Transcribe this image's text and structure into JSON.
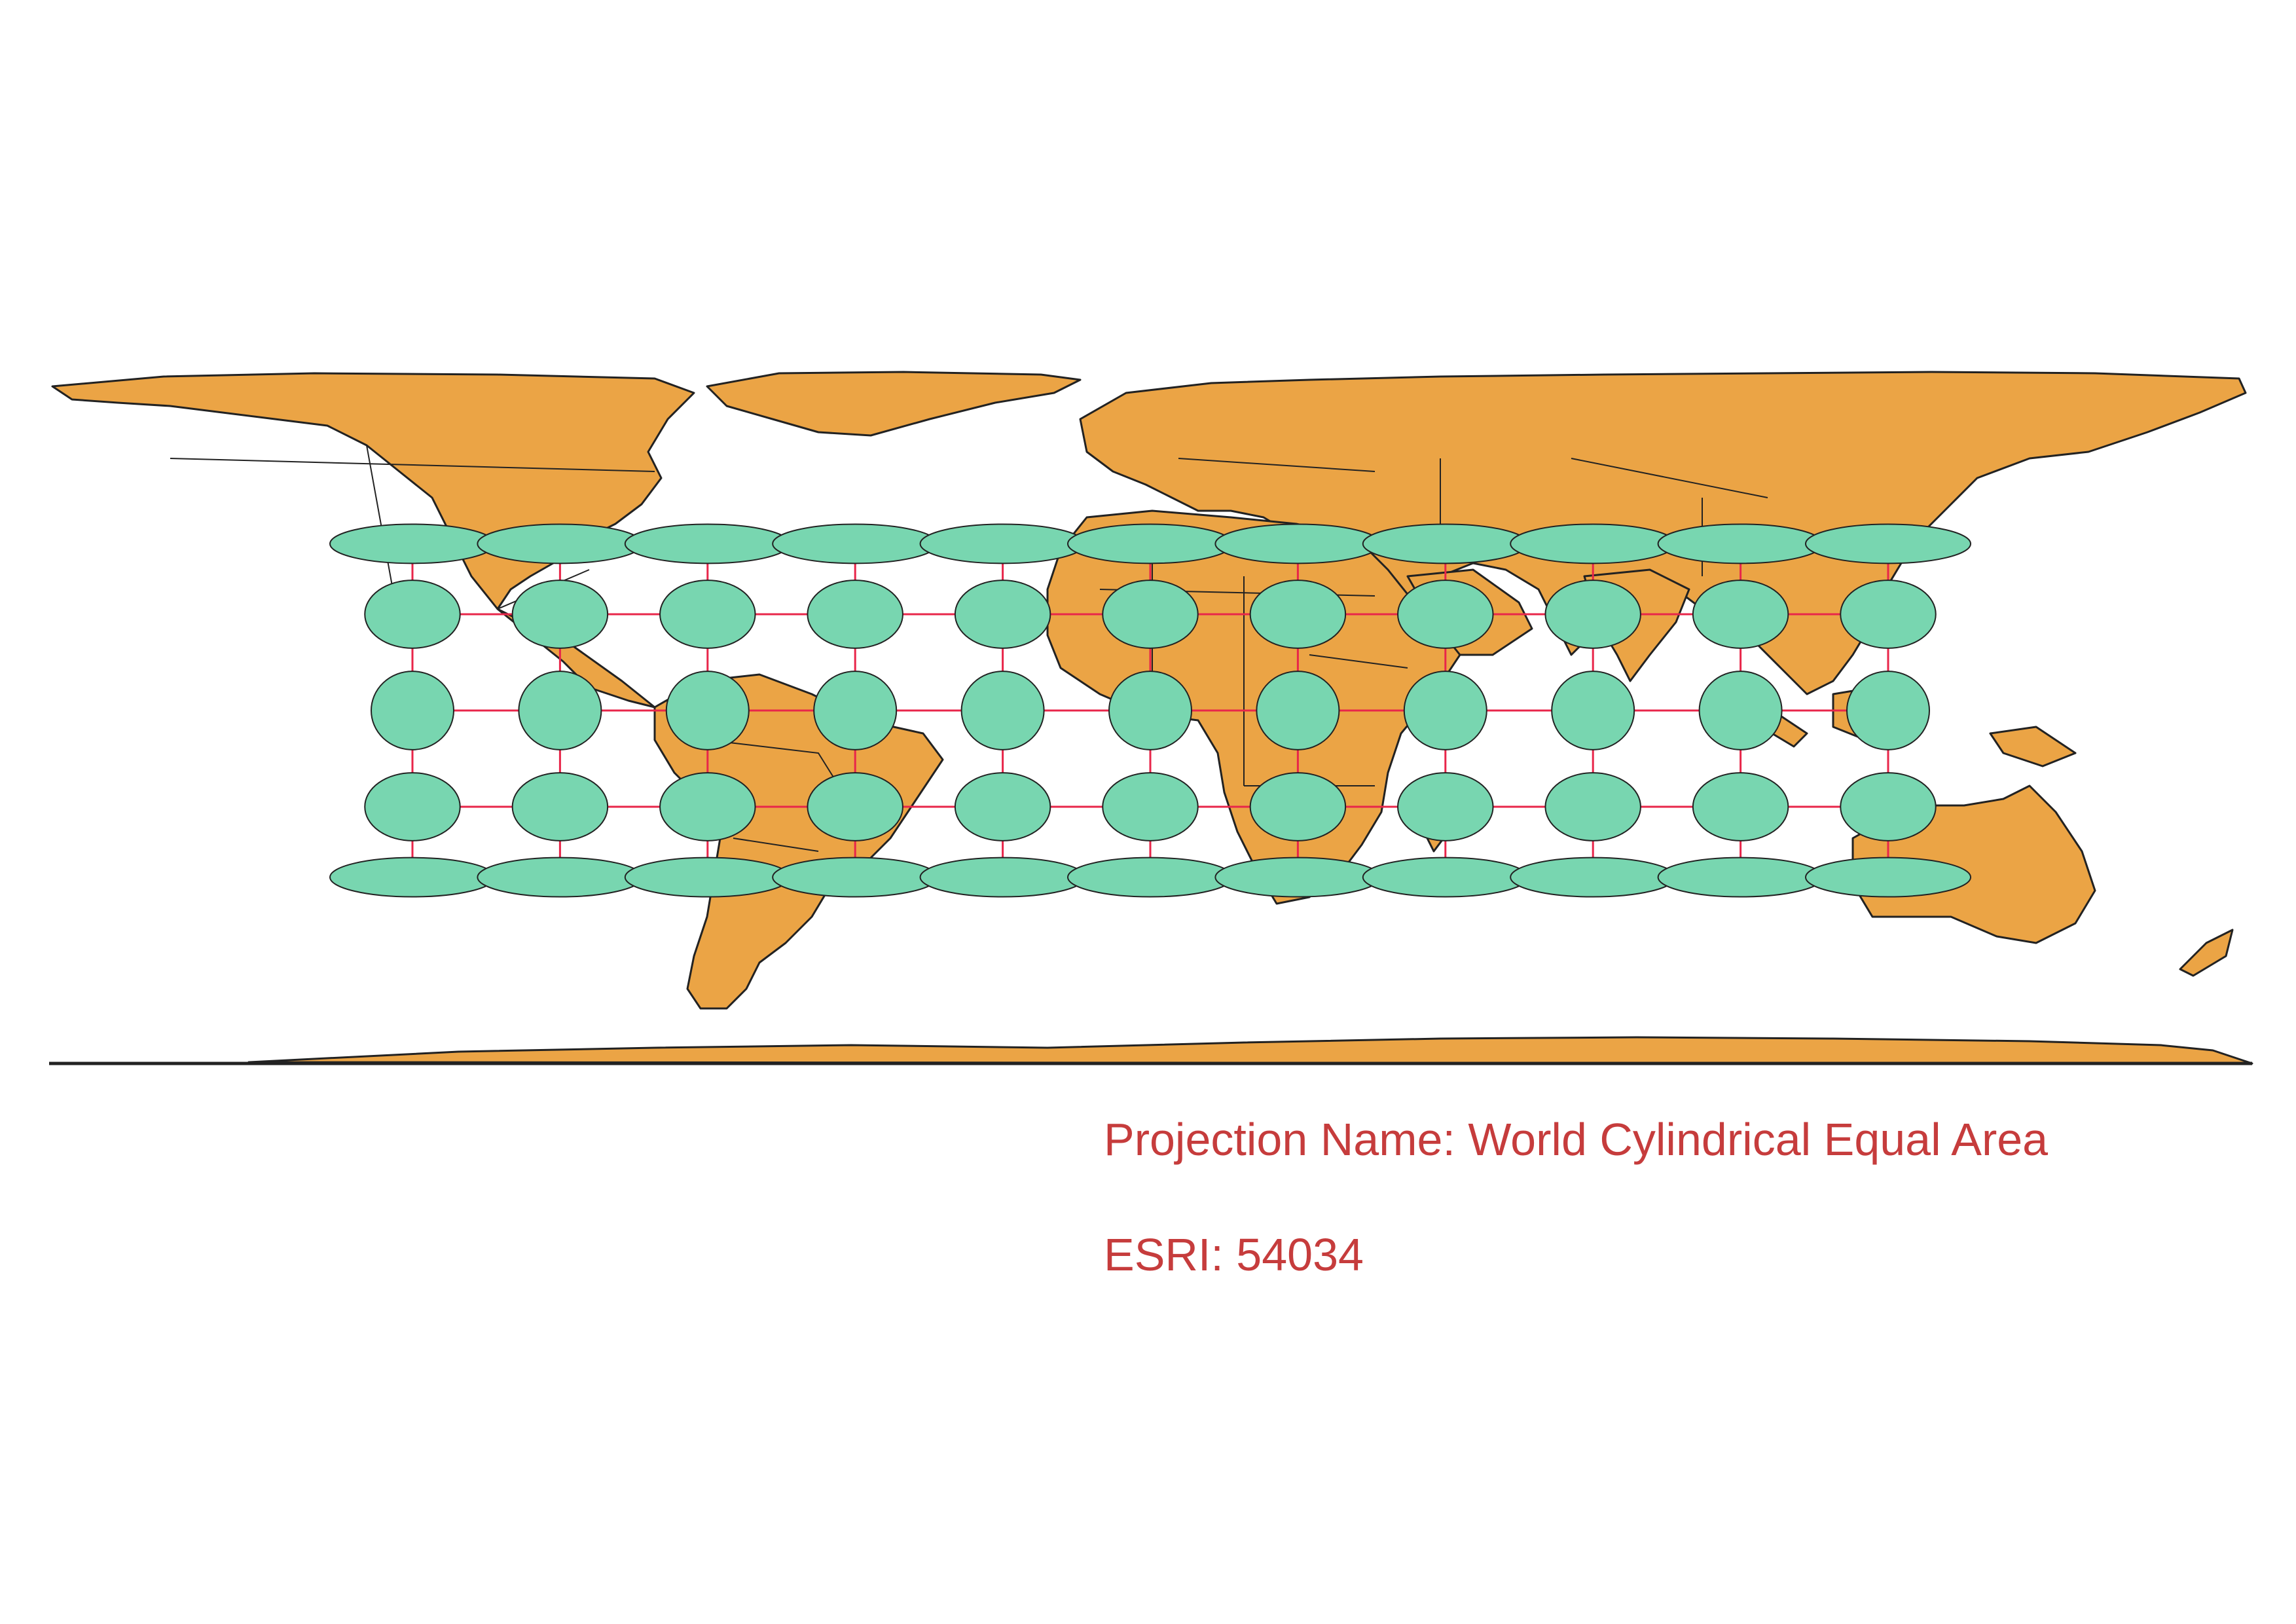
{
  "projection": {
    "name_label": "Projection Name: World Cylindrical Equal Area",
    "code_label": "ESRI: 54034"
  },
  "indicatrix": {
    "longitudes": [
      -150,
      -120,
      -90,
      -60,
      -30,
      0,
      30,
      60,
      90,
      120,
      150
    ],
    "latitudes": [
      -60,
      -30,
      0,
      30,
      60
    ]
  },
  "colors": {
    "land": "#eba445",
    "border": "#222222",
    "indicatrix_fill": "#78d6b0",
    "graticule": "#e8264a",
    "caption": "#c63c3c"
  }
}
